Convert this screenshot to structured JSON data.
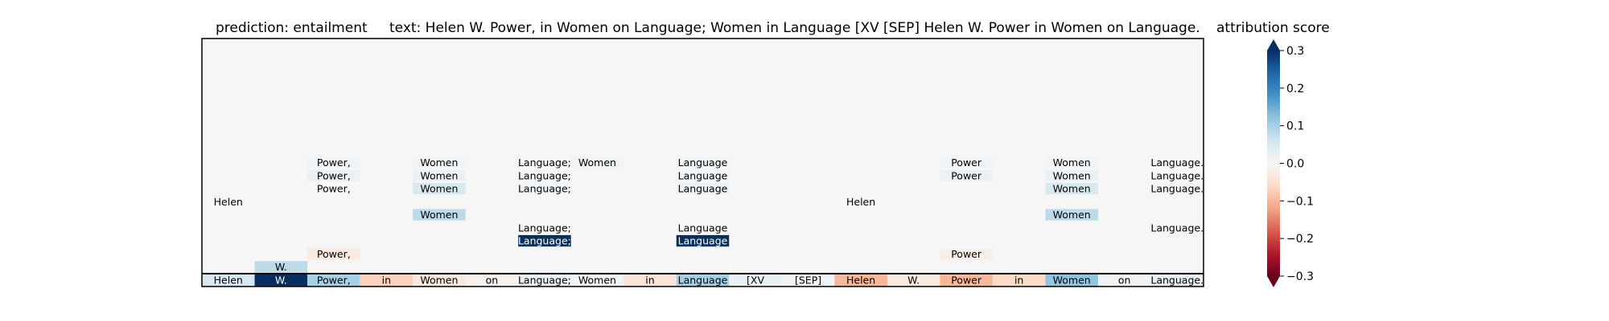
{
  "chart_data": {
    "type": "heatmap",
    "titles": {
      "prediction": "prediction:  entailment",
      "text": "text:  Helen W. Power, in Women on Language; Women in Language [XV [SEP] Helen W. Power in Women on Language.",
      "colorbar": "attribution score"
    },
    "tokens": [
      "Helen",
      "W.",
      "Power,",
      "in",
      "Women",
      "on",
      "Language;",
      "Women",
      "in",
      "Language",
      "[XV",
      "[SEP]",
      "Helen",
      "W.",
      "Power",
      "in",
      "Women",
      "on",
      "Language."
    ],
    "row_count": 19,
    "base_row": [
      0.05,
      0.3,
      0.1,
      -0.07,
      -0.03,
      -0.01,
      0.02,
      0.01,
      -0.04,
      0.1,
      0.02,
      0.01,
      -0.1,
      -0.03,
      -0.1,
      -0.06,
      0.12,
      0.01,
      0.02
    ],
    "upper_cells": [
      {
        "row": 1,
        "token": 1,
        "label": "W.",
        "value": 0.08
      },
      {
        "row": 2,
        "token": 2,
        "label": "Power,",
        "value": -0.03
      },
      {
        "row": 2,
        "token": 14,
        "label": "Power",
        "value": -0.02
      },
      {
        "row": 3,
        "token": 6,
        "label": "Language;",
        "value": 0.32
      },
      {
        "row": 3,
        "token": 9,
        "label": "Language",
        "value": 0.32
      },
      {
        "row": 4,
        "token": 6,
        "label": "Language;",
        "value": 0.0
      },
      {
        "row": 4,
        "token": 9,
        "label": "Language",
        "value": 0.0
      },
      {
        "row": 4,
        "token": 18,
        "label": "Language.",
        "value": 0.0
      },
      {
        "row": 5,
        "token": 4,
        "label": "Women",
        "value": 0.08
      },
      {
        "row": 5,
        "token": 16,
        "label": "Women",
        "value": 0.08
      },
      {
        "row": 6,
        "token": 0,
        "label": "Helen",
        "value": 0.0
      },
      {
        "row": 6,
        "token": 12,
        "label": "Helen",
        "value": 0.0
      },
      {
        "row": 7,
        "token": 2,
        "label": "Power,",
        "value": 0.0
      },
      {
        "row": 7,
        "token": 4,
        "label": "Women",
        "value": 0.05
      },
      {
        "row": 7,
        "token": 6,
        "label": "Language;",
        "value": 0.01
      },
      {
        "row": 7,
        "token": 9,
        "label": "Language",
        "value": 0.02
      },
      {
        "row": 7,
        "token": 16,
        "label": "Women",
        "value": 0.05
      },
      {
        "row": 7,
        "token": 18,
        "label": "Language.",
        "value": 0.01
      },
      {
        "row": 8,
        "token": 2,
        "label": "Power,",
        "value": 0.02
      },
      {
        "row": 8,
        "token": 4,
        "label": "Women",
        "value": 0.02
      },
      {
        "row": 8,
        "token": 6,
        "label": "Language;",
        "value": 0.01
      },
      {
        "row": 8,
        "token": 9,
        "label": "Language",
        "value": 0.01
      },
      {
        "row": 8,
        "token": 14,
        "label": "Power",
        "value": 0.02
      },
      {
        "row": 8,
        "token": 16,
        "label": "Women",
        "value": 0.02
      },
      {
        "row": 8,
        "token": 18,
        "label": "Language.",
        "value": 0.0
      },
      {
        "row": 9,
        "token": 2,
        "label": "Power,",
        "value": 0.01
      },
      {
        "row": 9,
        "token": 4,
        "label": "Women",
        "value": 0.01
      },
      {
        "row": 9,
        "token": 6,
        "label": "Language;",
        "value": 0.0
      },
      {
        "row": 9,
        "token": 7,
        "label": "Women",
        "value": 0.01
      },
      {
        "row": 9,
        "token": 9,
        "label": "Language",
        "value": 0.01
      },
      {
        "row": 9,
        "token": 14,
        "label": "Power",
        "value": 0.01
      },
      {
        "row": 9,
        "token": 16,
        "label": "Women",
        "value": 0.01
      },
      {
        "row": 9,
        "token": 18,
        "label": "Language.",
        "value": 0.0
      }
    ],
    "colorbar": {
      "min": -0.3,
      "max": 0.3,
      "ticks": [
        "0.3",
        "0.2",
        "0.1",
        "0.0",
        "−0.1",
        "−0.2",
        "−0.3"
      ],
      "colormap": "RdBu",
      "extend": "both"
    },
    "colors": {
      "background": "#f5f6f5",
      "frame": "#000000",
      "dark_text": "#000000",
      "light_text": "#ffffff"
    }
  }
}
